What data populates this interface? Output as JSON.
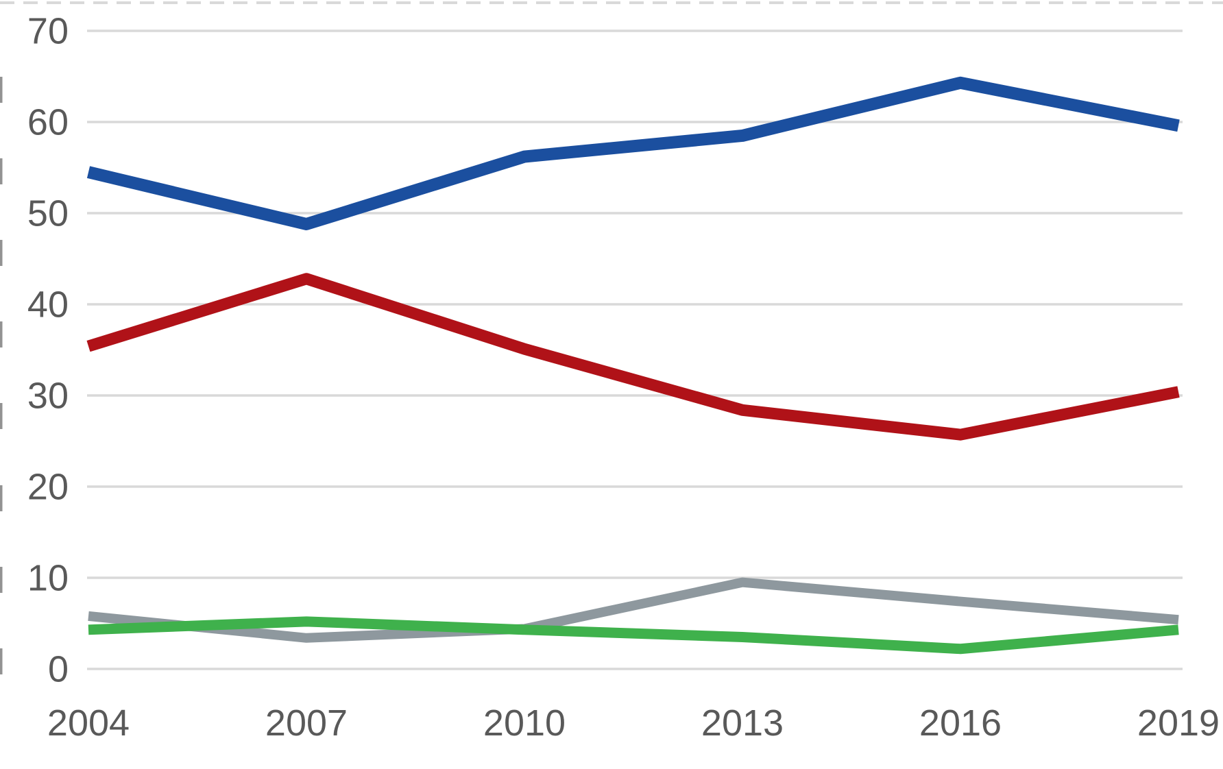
{
  "chart_data": {
    "type": "line",
    "categories": [
      "2004",
      "2007",
      "2010",
      "2013",
      "2016",
      "2019"
    ],
    "series": [
      {
        "name": "blue",
        "color": "#1b4f9f",
        "values": [
          54.5,
          48.8,
          56.2,
          58.5,
          64.3,
          59.6
        ]
      },
      {
        "name": "red",
        "color": "#b01218",
        "values": [
          35.4,
          42.8,
          35.1,
          28.4,
          25.7,
          30.4
        ]
      },
      {
        "name": "gray",
        "color": "#8e989e",
        "values": [
          5.8,
          3.4,
          4.4,
          9.5,
          7.4,
          5.4
        ]
      },
      {
        "name": "green",
        "color": "#3fb14c",
        "values": [
          4.3,
          5.2,
          4.3,
          3.5,
          2.2,
          4.3
        ]
      }
    ],
    "yticks": [
      0,
      10,
      20,
      30,
      40,
      50,
      60,
      70
    ],
    "ylim": [
      0,
      70
    ],
    "grid": true,
    "legend": "none",
    "gridline_color": "#d9d9d9",
    "top_dashed_border_color": "#d9d9d9",
    "tick_label_color": "#595959",
    "background": "#ffffff"
  }
}
